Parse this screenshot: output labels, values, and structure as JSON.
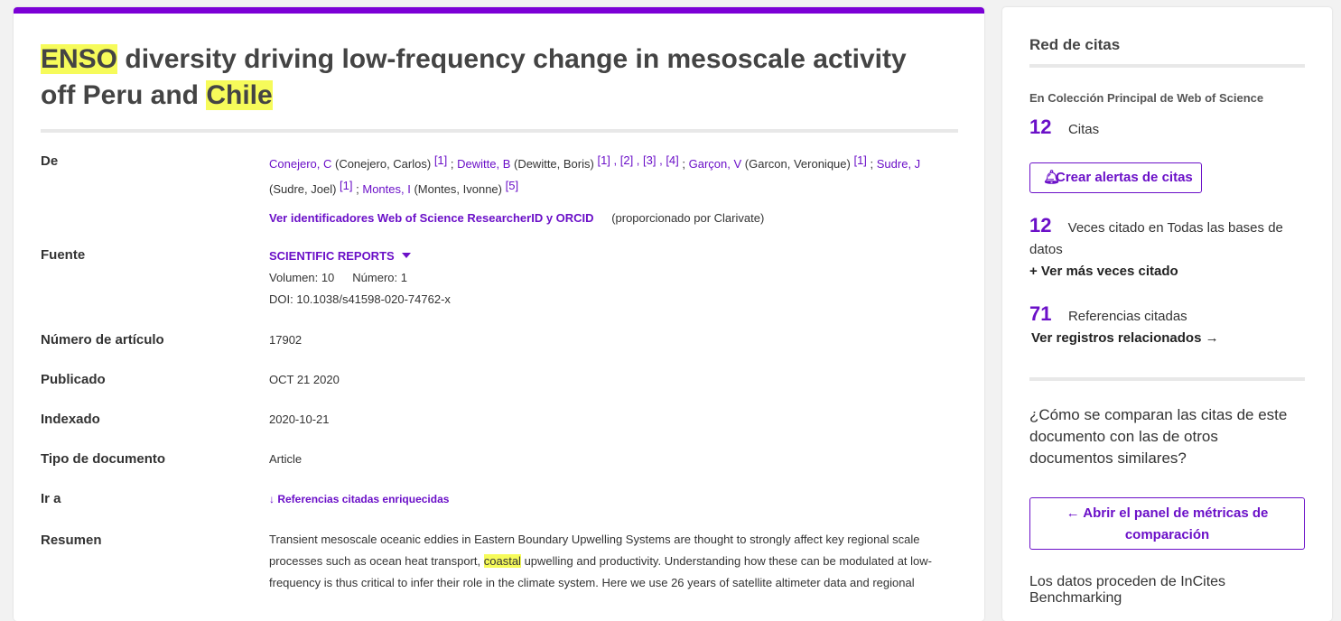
{
  "record": {
    "title": {
      "hl1": "ENSO",
      "mid": " diversity driving low-frequency change in mesoscale activity off Peru and ",
      "hl2": "Chile"
    },
    "labels": {
      "authors": "De",
      "source": "Fuente",
      "article_number": "Número de artículo",
      "published": "Publicado",
      "indexed": "Indexado",
      "doc_type": "Tipo de documento",
      "goto": "Ir a",
      "abstract": "Resumen"
    },
    "authors": [
      {
        "link": "Conejero, C",
        "full": " (Conejero, Carlos) ",
        "affs": "[1]",
        "sep": " ; "
      },
      {
        "link": "Dewitte, B",
        "full": " (Dewitte, Boris) ",
        "affs": "[1] , [2] , [3] , [4]",
        "sep": " ; "
      },
      {
        "link": "Garçon, V",
        "full": " (Garcon, Veronique) ",
        "affs": "[1]",
        "sep": " ; "
      },
      {
        "link": "Sudre, J",
        "full": " (Sudre, Joel) ",
        "affs": "[1]",
        "sep": " ; "
      },
      {
        "link": "Montes, I",
        "full": " (Montes, Ivonne) ",
        "affs": "[5]",
        "sep": ""
      }
    ],
    "researcher_link": "Ver identificadores Web of Science ResearcherID y ORCID",
    "provided_by": "(proporcionado por Clarivate)",
    "source": {
      "journal": "SCIENTIFIC REPORTS",
      "volume": "Volumen: 10",
      "issue": "Número: 1",
      "doi": "DOI: 10.1038/s41598-020-74762-x"
    },
    "article_number": "17902",
    "published": "OCT 21 2020",
    "indexed": "2020-10-21",
    "doc_type": "Article",
    "goto_link": "↓ Referencias citadas enriquecidas",
    "abstract": {
      "part1": "Transient mesoscale oceanic eddies in Eastern Boundary Upwelling Systems are thought to strongly affect key regional scale processes such as ocean heat transport, ",
      "hl": "coastal",
      "part2": " upwelling and productivity. Understanding how these can be modulated at low-frequency is thus critical to infer their role in the climate system. Here we use 26 years of satellite altimeter data and regional"
    }
  },
  "sidebar": {
    "heading": "Red de citas",
    "collection": "En Colección Principal de Web of Science",
    "citations_count": "12",
    "citations_label": "Citas",
    "alerts_button": "Crear alertas de citas",
    "times_cited_count": "12",
    "times_cited_label": "Veces citado en Todas las bases de datos",
    "more_times_cited": "+ Ver más veces citado",
    "refs_count": "71",
    "refs_label": "Referencias citadas",
    "related": "Ver registros relacionados →",
    "compare_question": "¿Cómo se comparan las citas de este documento con las de otros documentos similares?",
    "metrics_button": "← Abrir el panel de métricas de comparación",
    "data_source": "Los datos proceden de InCites Benchmarking"
  },
  "colors": {
    "accent": "#7b00d6",
    "link": "#6b10c8",
    "highlight": "#f6fb5a"
  }
}
